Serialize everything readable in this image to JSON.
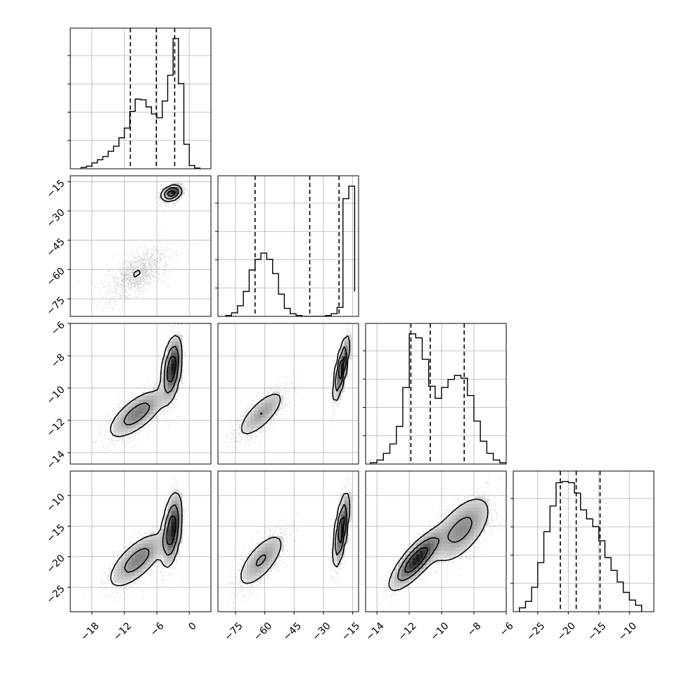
{
  "chart_data": {
    "type": "corner",
    "n_params": 4,
    "grid": true,
    "params": [
      {
        "range": [
          -22,
          4
        ],
        "ticks": [
          -18,
          -12,
          -6,
          0
        ],
        "tick_labels": [
          "−18",
          "−12",
          "−6",
          "0"
        ]
      },
      {
        "range": [
          -84,
          -12
        ],
        "ticks": [
          -75,
          -60,
          -45,
          -30,
          -15
        ],
        "tick_labels": [
          "−75",
          "−60",
          "−45",
          "−30",
          "−15"
        ]
      },
      {
        "range": [
          -14.7,
          -6
        ],
        "ticks": [
          -14,
          -12,
          -10,
          -8,
          -6
        ],
        "tick_labels": [
          "−14",
          "−12",
          "−10",
          "−8",
          "−6"
        ]
      },
      {
        "range": [
          -29,
          -6
        ],
        "ticks": [
          -25,
          -20,
          -15,
          -10
        ],
        "tick_labels": [
          "−25",
          "−20",
          "−15",
          "−10"
        ]
      }
    ],
    "quantiles": [
      [
        -10.9,
        -6.1,
        -2.7
      ],
      [
        -65.0,
        -37.0,
        -22.0
      ],
      [
        -11.9,
        -10.7,
        -8.6
      ],
      [
        -21.3,
        -18.7,
        -14.8
      ]
    ],
    "histograms": [
      {
        "edges": [
          -20,
          -19,
          -18,
          -17,
          -16,
          -15,
          -14,
          -13,
          -12,
          -11,
          -10,
          -9,
          -8,
          -7,
          -6,
          -5,
          -4,
          -3,
          -2,
          -1,
          0,
          1,
          2
        ],
        "counts": [
          2,
          4,
          9,
          14,
          19,
          27,
          35,
          48,
          63,
          89,
          108,
          107,
          96,
          85,
          79,
          105,
          145,
          202,
          132,
          38,
          5,
          1
        ]
      },
      {
        "edges": [
          -80,
          -77,
          -74,
          -71,
          -68,
          -65,
          -62,
          -59,
          -56,
          -53,
          -50,
          -47,
          -44,
          -41,
          -38,
          -35,
          -32,
          -29,
          -26,
          -23,
          -20,
          -17,
          -14
        ],
        "counts": [
          1,
          4,
          12,
          28,
          52,
          64,
          71,
          64,
          48,
          25,
          9,
          3,
          1,
          0,
          0,
          0,
          0,
          1,
          3,
          10,
          132,
          146,
          28
        ]
      },
      {
        "edges": [
          -14.4,
          -14.0,
          -13.6,
          -13.2,
          -12.8,
          -12.4,
          -12.0,
          -11.6,
          -11.2,
          -10.8,
          -10.4,
          -10.0,
          -9.6,
          -9.2,
          -8.8,
          -8.4,
          -8.0,
          -7.6,
          -7.2,
          -6.8,
          -6.4,
          -6.0
        ],
        "counts": [
          1,
          3,
          8,
          15,
          28,
          57,
          97,
          94,
          78,
          58,
          49,
          57,
          63,
          66,
          64,
          51,
          32,
          17,
          8,
          3,
          1
        ]
      },
      {
        "edges": [
          -28,
          -27,
          -26,
          -25,
          -24,
          -23,
          -22,
          -21,
          -20,
          -19,
          -18,
          -17,
          -16,
          -15,
          -14,
          -13,
          -12,
          -11,
          -10,
          -9,
          -8
        ],
        "counts": [
          3,
          8,
          19,
          38,
          62,
          82,
          100,
          101,
          100,
          92,
          79,
          72,
          66,
          55,
          42,
          32,
          23,
          15,
          9,
          5
        ]
      }
    ],
    "modes": [
      {
        "weight": 0.5,
        "mean": [
          -9.7,
          -62.0,
          -11.6,
          -20.6
        ],
        "sd": [
          2.8,
          6.5,
          0.8,
          2.4
        ],
        "corr": [
          [
            1,
            0.6,
            0.7,
            0.7
          ],
          [
            0.6,
            1,
            0.75,
            0.7
          ],
          [
            0.7,
            0.75,
            1,
            0.8
          ],
          [
            0.7,
            0.7,
            0.8,
            1
          ]
        ]
      },
      {
        "weight": 0.5,
        "mean": [
          -3.3,
          -21.0,
          -8.8,
          -15.6
        ],
        "sd": [
          0.95,
          2.0,
          1.0,
          3.0
        ],
        "corr": [
          [
            1,
            0.3,
            0.4,
            0.4
          ],
          [
            0.3,
            1,
            0.75,
            0.65
          ],
          [
            0.4,
            0.75,
            1,
            0.6
          ],
          [
            0.4,
            0.65,
            0.6,
            1
          ]
        ]
      }
    ]
  }
}
